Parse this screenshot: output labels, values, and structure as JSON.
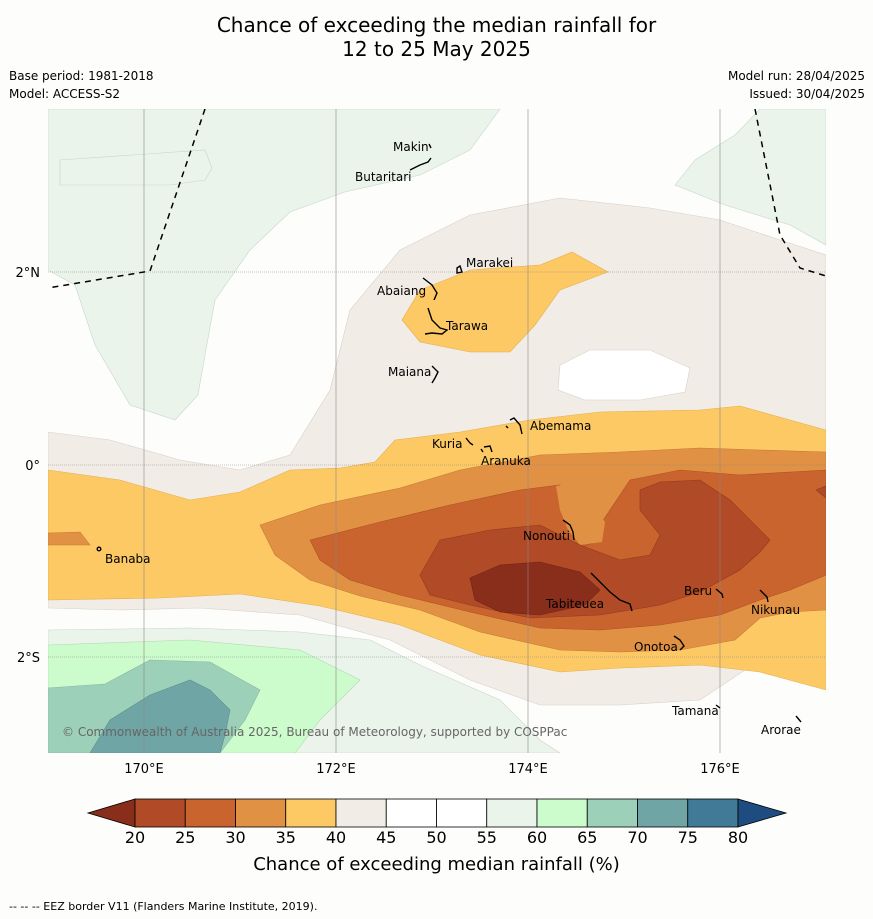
{
  "title_line1": "Chance of exceeding the median rainfall for",
  "title_line2": "12 to 25 May 2025",
  "base_period": "Base period: 1981-2018",
  "model": "Model: ACCESS-S2",
  "model_run": "Model run: 28/04/2025",
  "issued": "Issued: 30/04/2025",
  "copyright": "© Commonwealth of Australia 2025, Bureau of Meteorology, supported by COSPPac",
  "footnote": "--  --  -- EEZ border V11 (Flanders Marine Institute, 2019).",
  "lon_ticks": [
    "170°E",
    "172°E",
    "174°E",
    "176°E"
  ],
  "lat_ticks": [
    "2°N",
    "0°",
    "2°S"
  ],
  "places": [
    {
      "name": "Makin"
    },
    {
      "name": "Butaritari"
    },
    {
      "name": "Marakei"
    },
    {
      "name": "Abaiang"
    },
    {
      "name": "Tarawa"
    },
    {
      "name": "Maiana"
    },
    {
      "name": "Abemama"
    },
    {
      "name": "Kuria"
    },
    {
      "name": "Aranuka"
    },
    {
      "name": "Banaba"
    },
    {
      "name": "Nonouti"
    },
    {
      "name": "Beru"
    },
    {
      "name": "Tabiteuea"
    },
    {
      "name": "Nikunau"
    },
    {
      "name": "Onotoa"
    },
    {
      "name": "Tamana"
    },
    {
      "name": "Arorae"
    }
  ],
  "colorbar": {
    "title": "Chance of exceeding median rainfall (%)",
    "ticks": [
      "20",
      "25",
      "30",
      "35",
      "40",
      "45",
      "50",
      "55",
      "60",
      "65",
      "70",
      "75",
      "80"
    ],
    "colors": [
      "#8a2e1c",
      "#b04a27",
      "#c9642f",
      "#e19144",
      "#fdc965",
      "#f2ece6",
      "#ffffff",
      "#ffffff",
      "#eaf4ea",
      "#ccfbcc",
      "#9dd0b9",
      "#6fa5a4",
      "#417a96",
      "#1f4c80"
    ]
  }
}
